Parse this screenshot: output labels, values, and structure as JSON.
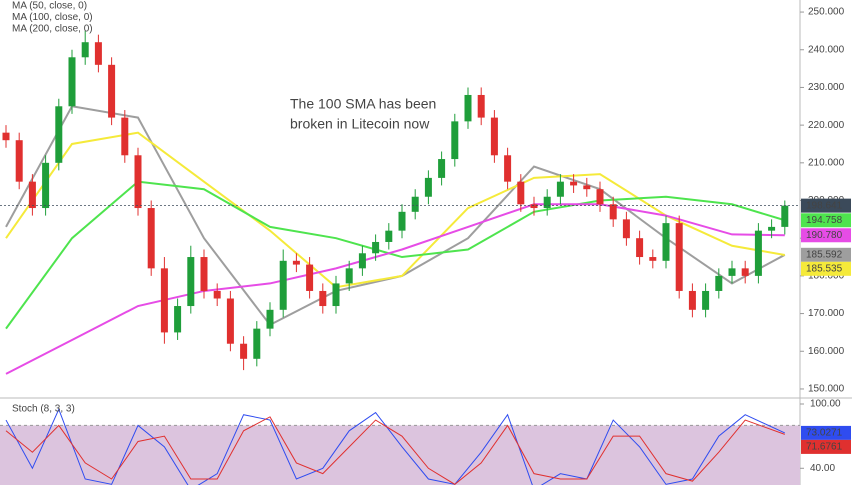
{
  "chart_data": [
    {
      "type": "candlestick",
      "annotation": [
        "The 100 SMA has been",
        "broken in Litecoin now"
      ],
      "annotation_color": "#e8262a",
      "up_color": "#1f9e3a",
      "down_color": "#e0302f",
      "open": [
        218,
        216,
        205,
        198,
        210,
        225,
        238,
        242,
        236,
        222,
        212,
        198,
        182,
        165,
        172,
        185,
        176,
        174,
        162,
        158,
        166,
        171,
        184,
        183,
        176,
        172,
        178,
        182,
        186,
        189,
        192,
        197,
        201,
        206,
        211,
        221,
        228,
        222,
        212,
        205,
        199,
        198,
        201,
        205,
        204,
        203,
        199,
        195,
        190,
        185,
        184,
        194,
        176,
        171,
        176,
        180,
        182,
        180,
        192,
        193
      ],
      "high": [
        220,
        218,
        207,
        212,
        227,
        240,
        245,
        244,
        238,
        224,
        214,
        200,
        185,
        174,
        188,
        187,
        178,
        176,
        164,
        168,
        173,
        187,
        186,
        185,
        178,
        180,
        184,
        188,
        191,
        194,
        199,
        203,
        208,
        213,
        223,
        230,
        230,
        224,
        214,
        207,
        201,
        203,
        207,
        207,
        206,
        205,
        201,
        197,
        192,
        187,
        196,
        196,
        178,
        178,
        182,
        184,
        184,
        194,
        195,
        200
      ],
      "low": [
        214,
        203,
        196,
        196,
        208,
        223,
        236,
        234,
        220,
        210,
        196,
        180,
        162,
        163,
        170,
        174,
        172,
        160,
        155,
        156,
        164,
        169,
        181,
        174,
        170,
        170,
        176,
        180,
        184,
        187,
        190,
        195,
        199,
        204,
        209,
        219,
        220,
        210,
        203,
        197,
        196,
        196,
        199,
        202,
        201,
        197,
        193,
        188,
        183,
        182,
        182,
        174,
        169,
        169,
        174,
        178,
        178,
        178,
        190,
        191
      ],
      "close": [
        216,
        205,
        198,
        210,
        225,
        238,
        242,
        236,
        222,
        212,
        198,
        182,
        165,
        172,
        185,
        176,
        174,
        162,
        158,
        166,
        171,
        184,
        183,
        176,
        172,
        178,
        182,
        186,
        189,
        192,
        197,
        201,
        206,
        211,
        221,
        228,
        222,
        212,
        205,
        199,
        198,
        201,
        205,
        204,
        203,
        199,
        195,
        190,
        185,
        184,
        194,
        176,
        171,
        176,
        180,
        182,
        180,
        192,
        193,
        198.641
      ],
      "last_color": "#3b4a5a",
      "ylim": [
        147.6,
        253.2
      ],
      "yticks": [
        {
          "value": 150,
          "label": "150.000"
        },
        {
          "value": 160,
          "label": "160.000"
        },
        {
          "value": 170,
          "label": "170.000"
        },
        {
          "value": 180,
          "label": "180.000"
        },
        {
          "value": 190,
          "label": "190.000"
        },
        {
          "value": 200,
          "label": "200.000"
        },
        {
          "value": 210,
          "label": "210.000"
        },
        {
          "value": 220,
          "label": "220.000"
        },
        {
          "value": 230,
          "label": "230.000"
        },
        {
          "value": 240,
          "label": "240.000"
        },
        {
          "value": 250,
          "label": "250.000"
        }
      ],
      "series": [
        {
          "name": "MA (50, close, 0)",
          "color": "#9e9e9e",
          "x": [
            0,
            5,
            10,
            15,
            20,
            25,
            30,
            35,
            40,
            45,
            50,
            55,
            59
          ],
          "values": [
            193,
            225,
            222,
            190,
            167,
            176,
            180,
            190,
            209,
            203,
            190,
            178,
            185.592
          ]
        },
        {
          "name": "MA (100, close, 0)",
          "color": "#f5ea3a",
          "x": [
            0,
            5,
            10,
            15,
            20,
            25,
            30,
            35,
            40,
            45,
            50,
            55,
            59
          ],
          "values": [
            190,
            215,
            218,
            205,
            192,
            177,
            180,
            198,
            206,
            207,
            196,
            188,
            185.535
          ]
        },
        {
          "name": "MA (200, close, 0)",
          "color": "#4ee44e",
          "x": [
            0,
            5,
            10,
            15,
            20,
            25,
            30,
            35,
            40,
            45,
            50,
            55,
            59
          ],
          "values": [
            166,
            190,
            205,
            203,
            193,
            190,
            185,
            187,
            197,
            200,
            201,
            199,
            194.758
          ]
        },
        {
          "color": "#e64ce6",
          "x": [
            0,
            5,
            10,
            15,
            20,
            25,
            30,
            35,
            40,
            45,
            50,
            55,
            59
          ],
          "values": [
            154,
            163,
            172,
            176,
            178,
            182,
            187,
            193,
            199,
            199,
            196,
            191,
            190.78
          ],
          "value_labels": [
            null,
            null,
            null,
            null,
            null,
            null,
            null,
            null,
            null,
            null,
            null,
            null,
            "190.780"
          ]
        }
      ]
    },
    {
      "type": "line",
      "title": "Stoch (8, 3, 3)",
      "ylim": [
        24.4,
        105.6
      ],
      "yticks": [
        {
          "value": 100,
          "label": "100.00"
        },
        {
          "value": 40,
          "label": "40.00"
        }
      ],
      "band": [
        20,
        80
      ],
      "band_color": "#dcc4de",
      "x": [
        0,
        2,
        4,
        6,
        8,
        10,
        12,
        14,
        16,
        18,
        20,
        22,
        24,
        26,
        28,
        30,
        32,
        34,
        36,
        38,
        40,
        42,
        44,
        46,
        48,
        50,
        52,
        54,
        56,
        59
      ],
      "series": [
        {
          "color": "#2f4cf0",
          "values": [
            85,
            40,
            95,
            30,
            25,
            80,
            60,
            20,
            35,
            90,
            85,
            30,
            40,
            75,
            92,
            60,
            30,
            25,
            55,
            90,
            20,
            35,
            30,
            85,
            60,
            25,
            30,
            70,
            90,
            73.0271
          ]
        },
        {
          "color": "#e0302f",
          "values": [
            75,
            55,
            80,
            45,
            30,
            65,
            70,
            30,
            30,
            75,
            88,
            45,
            35,
            60,
            85,
            70,
            40,
            25,
            45,
            80,
            35,
            30,
            30,
            70,
            70,
            35,
            28,
            55,
            85,
            71.6761
          ]
        }
      ]
    }
  ]
}
